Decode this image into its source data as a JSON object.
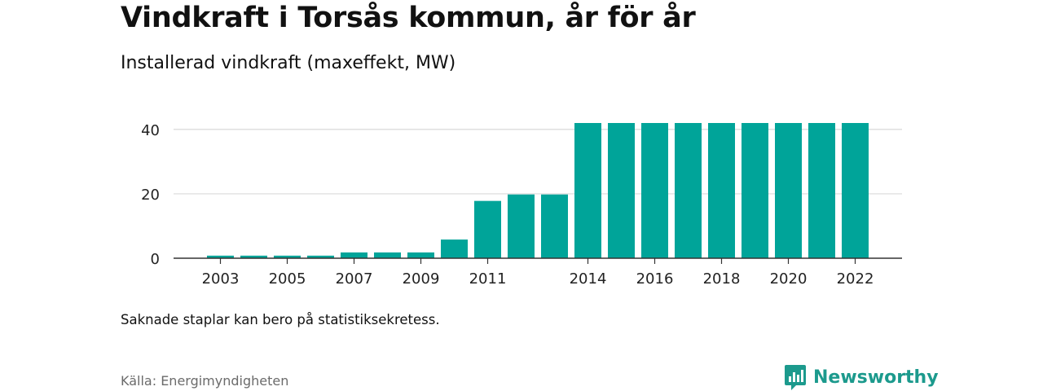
{
  "header": {
    "title": "Vindkraft i Torsås kommun, år för år",
    "subtitle": "Installerad vindkraft (maxeffekt, MW)"
  },
  "footer": {
    "note": "Saknade staplar kan bero på statistiksekretess.",
    "source": "Källa: Energimyndigheten",
    "brand": "Newsworthy",
    "brand_icon": "newsworthy-logo-icon"
  },
  "colors": {
    "bar": "#00a499",
    "grid": "#d9d9d9",
    "axis": "#333333",
    "brand": "#1c9a8d"
  },
  "chart_data": {
    "type": "bar",
    "title": "Vindkraft i Torsås kommun, år för år",
    "subtitle": "Installerad vindkraft (maxeffekt, MW)",
    "categories": [
      "2003",
      "2004",
      "2005",
      "2006",
      "2007",
      "2008",
      "2009",
      "2010",
      "2011",
      "2012",
      "2013",
      "2014",
      "2015",
      "2016",
      "2017",
      "2018",
      "2019",
      "2020",
      "2021",
      "2022"
    ],
    "values": [
      0.8,
      0.8,
      0.8,
      0.8,
      1.8,
      1.8,
      1.8,
      5.8,
      17.8,
      19.8,
      19.8,
      42,
      42,
      42,
      42,
      42,
      42,
      42,
      42,
      42
    ],
    "x_tick_labels": [
      "2003",
      "2005",
      "2007",
      "2009",
      "2011",
      "2014",
      "2016",
      "2018",
      "2020",
      "2022"
    ],
    "y_ticks": [
      0,
      20,
      40
    ],
    "ylim": [
      0,
      42
    ],
    "xlabel": "",
    "ylabel": "",
    "grid": true
  }
}
